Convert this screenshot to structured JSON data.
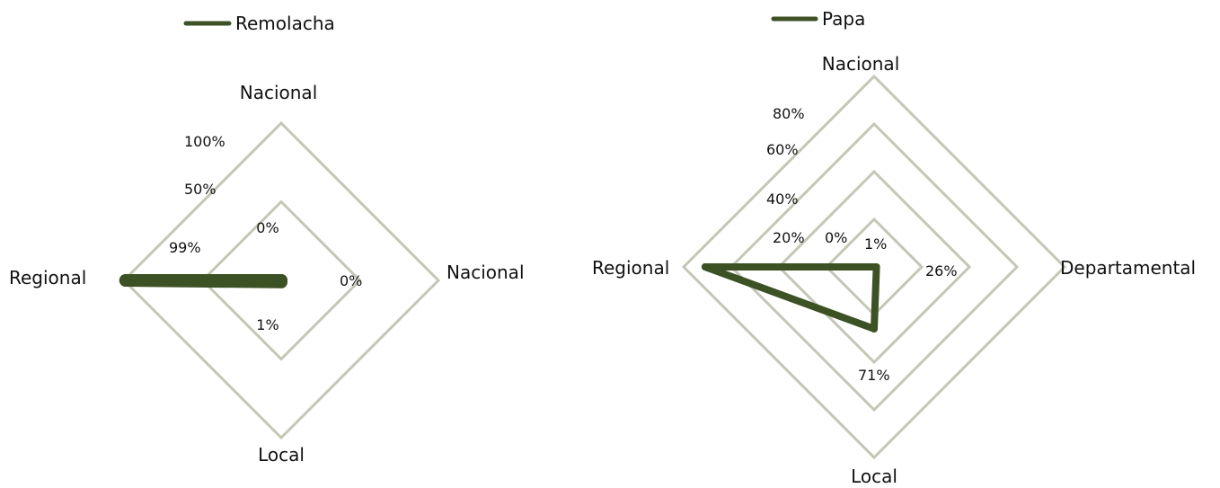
{
  "chart_data": [
    {
      "type": "radar",
      "legend": "Remolacha",
      "axes": [
        "Nacional",
        "Nacional",
        "Local",
        "Regional"
      ],
      "ticks": [
        "50%",
        "100%"
      ],
      "grid_max": 100,
      "series": [
        {
          "name": "Remolacha",
          "values": [
            0,
            0,
            1,
            99
          ],
          "labels": [
            "0%",
            "0%",
            "1%",
            "99%"
          ]
        }
      ],
      "colors": {
        "series": "#3c5225",
        "grid": "#c4c7b5"
      }
    },
    {
      "type": "radar",
      "legend": "Papa",
      "axes": [
        "Nacional",
        "Departamental",
        "Local",
        "Regional"
      ],
      "ticks": [
        "20%",
        "40%",
        "60%",
        "80%"
      ],
      "grid_max": 80,
      "series": [
        {
          "name": "Papa",
          "values": [
            0,
            1,
            26,
            71
          ],
          "labels": [
            "0%",
            "1%",
            "26%",
            "71%"
          ]
        }
      ],
      "colors": {
        "series": "#3c5225",
        "grid": "#c4c7b5"
      }
    }
  ]
}
